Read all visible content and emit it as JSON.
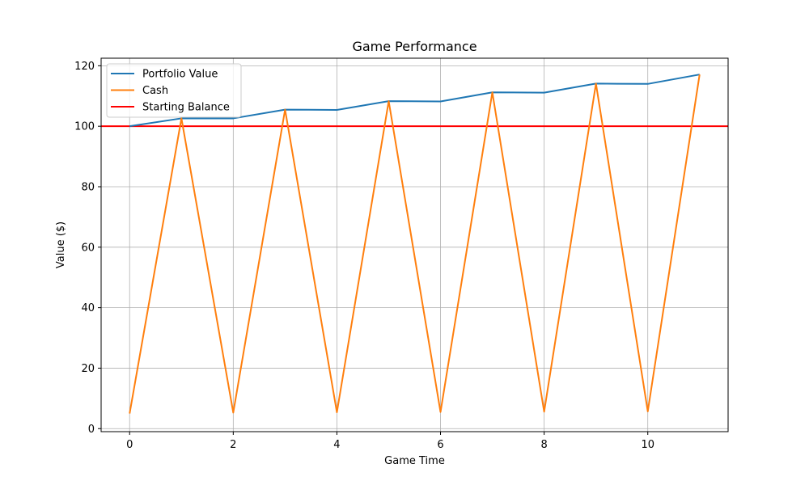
{
  "chart_data": {
    "type": "line",
    "title": "Game Performance",
    "xlabel": "Game Time",
    "ylabel": "Value ($)",
    "xlim": [
      -0.55,
      11.55
    ],
    "ylim": [
      -1,
      122.5
    ],
    "xticks": [
      0,
      2,
      4,
      6,
      8,
      10
    ],
    "yticks": [
      0,
      20,
      40,
      60,
      80,
      100,
      120
    ],
    "grid": true,
    "legend_position": "top-left",
    "x": [
      0,
      1,
      2,
      3,
      4,
      5,
      6,
      7,
      8,
      9,
      10,
      11
    ],
    "series": [
      {
        "name": "Portfolio Value",
        "color": "#1f77b4",
        "values": [
          100.0,
          102.6,
          102.6,
          105.5,
          105.4,
          108.3,
          108.2,
          111.2,
          111.1,
          114.1,
          114.0,
          117.1
        ]
      },
      {
        "name": "Cash",
        "color": "#ff7f0e",
        "values": [
          5.0,
          102.6,
          5.3,
          105.5,
          5.4,
          108.3,
          5.5,
          111.2,
          5.6,
          114.1,
          5.7,
          117.1
        ]
      }
    ],
    "hlines": [
      {
        "name": "Starting Balance",
        "color": "#ff0000",
        "y": 100
      }
    ]
  }
}
